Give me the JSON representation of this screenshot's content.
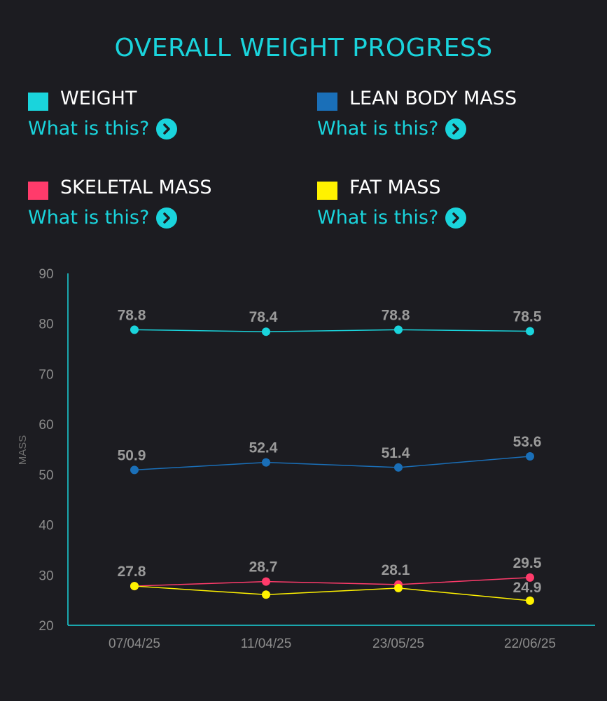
{
  "header": {
    "title": "OVERALL WEIGHT PROGRESS"
  },
  "legend": [
    {
      "label": "WEIGHT",
      "color": "#1ad4dc",
      "help": "What is this?"
    },
    {
      "label": "LEAN BODY MASS",
      "color": "#1a6fb8",
      "help": "What is this?"
    },
    {
      "label": "SKELETAL MASS",
      "color": "#ff3b6b",
      "help": "What is this?"
    },
    {
      "label": "FAT MASS",
      "color": "#fff200",
      "help": "What is this?"
    }
  ],
  "chart_data": {
    "type": "line",
    "title": "OVERALL WEIGHT PROGRESS",
    "xlabel": "",
    "ylabel": "MASS",
    "ylim": [
      20,
      90
    ],
    "yticks": [
      90,
      80,
      70,
      60,
      50,
      40,
      30,
      20
    ],
    "categories": [
      "07/04/25",
      "11/04/25",
      "23/05/25",
      "22/06/25"
    ],
    "series": [
      {
        "name": "WEIGHT",
        "color": "#1ad4dc",
        "values": [
          78.8,
          78.4,
          78.8,
          78.5
        ],
        "labels": [
          "78.8",
          "78.4",
          "78.8",
          "78.5"
        ]
      },
      {
        "name": "LEAN BODY MASS",
        "color": "#1a6fb8",
        "values": [
          50.9,
          52.4,
          51.4,
          53.6
        ],
        "labels": [
          "50.9",
          "52.4",
          "51.4",
          "53.6"
        ]
      },
      {
        "name": "SKELETAL MASS",
        "color": "#ff3b6b",
        "values": [
          27.8,
          28.7,
          28.1,
          29.5
        ],
        "labels": [
          "27.8",
          "28.7",
          "28.1",
          "29.5"
        ]
      },
      {
        "name": "FAT MASS",
        "color": "#fff200",
        "values": [
          27.8,
          26.1,
          27.4,
          24.9
        ],
        "labels": [
          "",
          "",
          "",
          "24.9"
        ]
      }
    ]
  }
}
